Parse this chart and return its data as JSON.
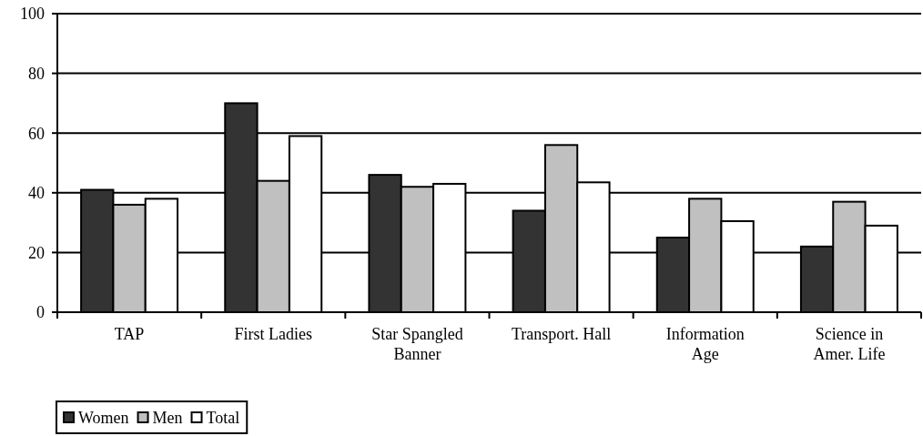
{
  "chart_data": {
    "type": "bar",
    "categories": [
      "TAP",
      "First Ladies",
      "Star Spangled Banner",
      "Transport. Hall",
      "Information Age",
      "Science in Amer. Life"
    ],
    "series": [
      {
        "name": "Women",
        "color": "#333333",
        "values": [
          41,
          70,
          46,
          34,
          25,
          22
        ]
      },
      {
        "name": "Men",
        "color": "#c0c0c0",
        "values": [
          36,
          44,
          42,
          56,
          38,
          37
        ]
      },
      {
        "name": "Total",
        "color": "#ffffff",
        "values": [
          38,
          59,
          43,
          43.5,
          30.5,
          29
        ]
      }
    ],
    "ylim": [
      0,
      100
    ],
    "yticks": [
      0,
      20,
      40,
      60,
      80,
      100
    ],
    "grid": "y",
    "legend": "bottom left"
  }
}
